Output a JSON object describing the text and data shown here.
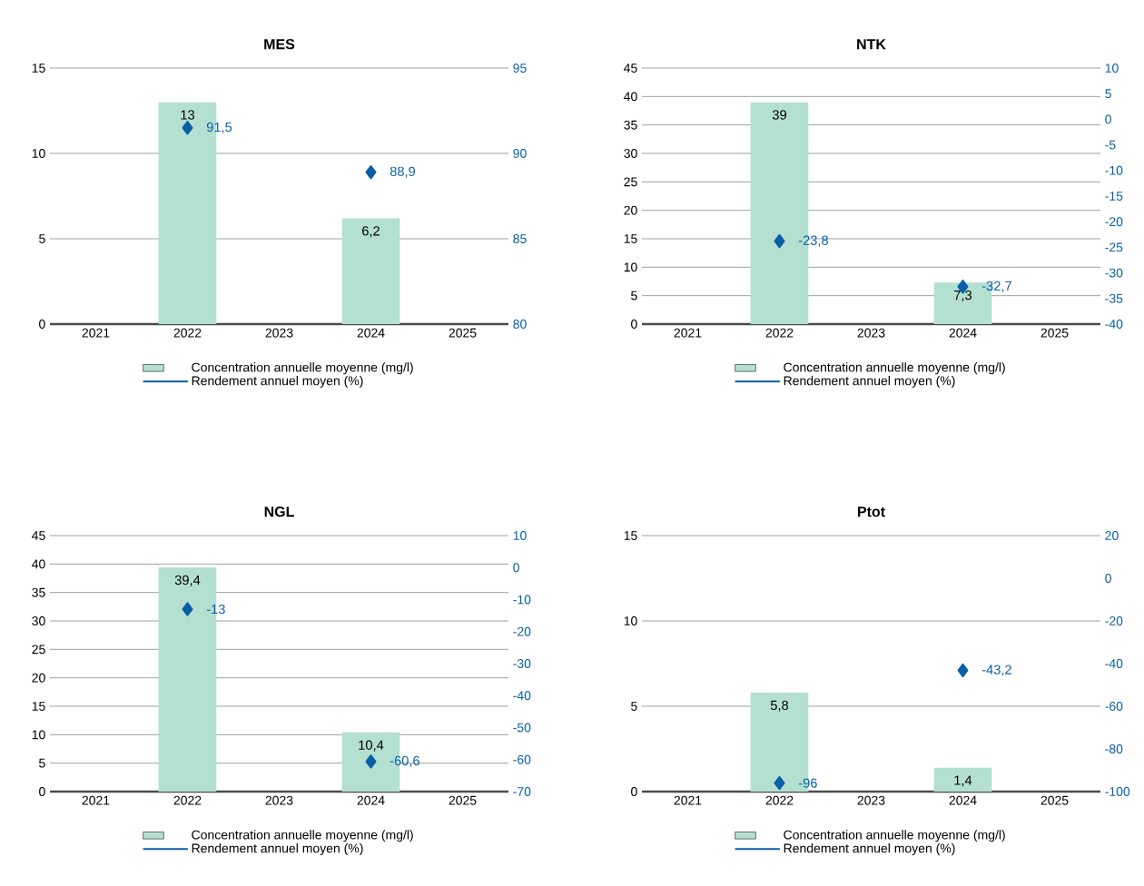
{
  "chart_data": [
    {
      "type": "bar",
      "title": "MES",
      "categories": [
        "2021",
        "2022",
        "2023",
        "2024",
        "2025"
      ],
      "ylim": [
        0,
        15
      ],
      "yticks": [
        0,
        5,
        10,
        15
      ],
      "y2lim": [
        80,
        95
      ],
      "y2ticks": [
        80,
        85,
        90,
        95
      ],
      "grid": "y",
      "legend": "bottom",
      "series": [
        {
          "name": "Concentration annuelle moyenne (mg/l)",
          "color": "#b3e0d0",
          "values": [
            null,
            13,
            null,
            6.2,
            null
          ],
          "value_labels": [
            null,
            "13",
            null,
            "6,2",
            null
          ]
        },
        {
          "name": "Rendement annuel moyen (%)",
          "type": "scatter",
          "axis": "y2",
          "marker": "diamond",
          "color": "#0a5ea8",
          "values": [
            null,
            91.5,
            null,
            88.9,
            null
          ],
          "value_labels": [
            null,
            "91,5",
            null,
            "88,9",
            null
          ]
        }
      ]
    },
    {
      "type": "bar",
      "title": "NTK",
      "categories": [
        "2021",
        "2022",
        "2023",
        "2024",
        "2025"
      ],
      "ylim": [
        0,
        45
      ],
      "yticks": [
        0,
        5,
        10,
        15,
        20,
        25,
        30,
        35,
        40,
        45
      ],
      "y2lim": [
        -40,
        10
      ],
      "y2ticks": [
        -40,
        -35,
        -30,
        -25,
        -20,
        -15,
        -10,
        -5,
        0,
        5,
        10
      ],
      "grid": "y",
      "legend": "bottom",
      "series": [
        {
          "name": "Concentration annuelle moyenne (mg/l)",
          "color": "#b3e0d0",
          "values": [
            null,
            39,
            null,
            7.3,
            null
          ],
          "value_labels": [
            null,
            "39",
            null,
            "7,3",
            null
          ]
        },
        {
          "name": "Rendement annuel moyen (%)",
          "type": "scatter",
          "axis": "y2",
          "marker": "diamond",
          "color": "#0a5ea8",
          "values": [
            null,
            -23.8,
            null,
            -32.7,
            null
          ],
          "value_labels": [
            null,
            "-23,8",
            null,
            "-32,7",
            null
          ]
        }
      ]
    },
    {
      "type": "bar",
      "title": "NGL",
      "categories": [
        "2021",
        "2022",
        "2023",
        "2024",
        "2025"
      ],
      "ylim": [
        0,
        45
      ],
      "yticks": [
        0,
        5,
        10,
        15,
        20,
        25,
        30,
        35,
        40,
        45
      ],
      "y2lim": [
        -70,
        10
      ],
      "y2ticks": [
        -70,
        -60,
        -50,
        -40,
        -30,
        -20,
        -10,
        0,
        10
      ],
      "grid": "y",
      "legend": "bottom",
      "series": [
        {
          "name": "Concentration annuelle moyenne (mg/l)",
          "color": "#b3e0d0",
          "values": [
            null,
            39.4,
            null,
            10.4,
            null
          ],
          "value_labels": [
            null,
            "39,4",
            null,
            "10,4",
            null
          ]
        },
        {
          "name": "Rendement annuel moyen (%)",
          "type": "scatter",
          "axis": "y2",
          "marker": "diamond",
          "color": "#0a5ea8",
          "values": [
            null,
            -13,
            null,
            -60.6,
            null
          ],
          "value_labels": [
            null,
            "-13",
            null,
            "-60,6",
            null
          ]
        }
      ]
    },
    {
      "type": "bar",
      "title": "Ptot",
      "categories": [
        "2021",
        "2022",
        "2023",
        "2024",
        "2025"
      ],
      "ylim": [
        0,
        15
      ],
      "yticks": [
        0,
        5,
        10,
        15
      ],
      "y2lim": [
        -100,
        20
      ],
      "y2ticks": [
        -100,
        -80,
        -60,
        -40,
        -20,
        0,
        20
      ],
      "grid": "y",
      "legend": "bottom",
      "series": [
        {
          "name": "Concentration annuelle moyenne (mg/l)",
          "color": "#b3e0d0",
          "values": [
            null,
            5.8,
            null,
            1.4,
            null
          ],
          "value_labels": [
            null,
            "5,8",
            null,
            "1,4",
            null
          ]
        },
        {
          "name": "Rendement annuel moyen (%)",
          "type": "scatter",
          "axis": "y2",
          "marker": "diamond",
          "color": "#0a5ea8",
          "values": [
            null,
            -96,
            null,
            -43.2,
            null
          ],
          "value_labels": [
            null,
            "-96",
            null,
            "-43,2",
            null
          ]
        }
      ]
    }
  ]
}
